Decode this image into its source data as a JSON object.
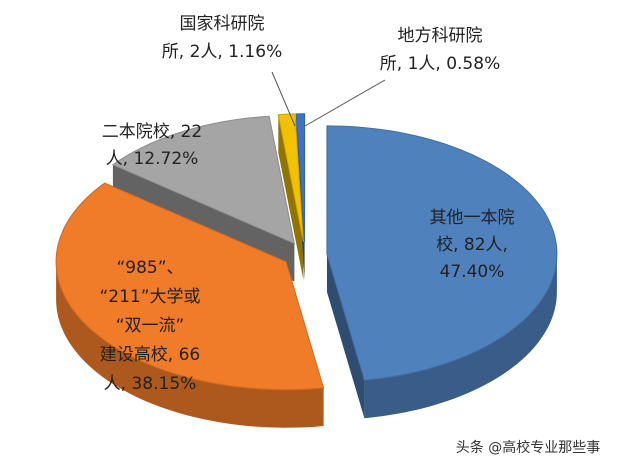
{
  "chart_data": {
    "type": "pie3d",
    "categories": [
      "其他一本院校",
      "“985”、“211”大学或“双一流”建设高校",
      "二本院校",
      "国家科研院所",
      "地方科研院所"
    ],
    "counts": [
      82,
      66,
      22,
      2,
      1
    ],
    "values": [
      47.4,
      38.15,
      12.72,
      1.16,
      0.58
    ],
    "value_labels": [
      [
        "其他一本院",
        "校, 82人,",
        "47.40%"
      ],
      [
        "“985”、",
        "“211”大学或",
        "“双一流”",
        "建设高校, 66",
        "人, 38.15%"
      ],
      [
        "二本院校, 22",
        "人, 12.72%"
      ],
      [
        "国家科研院",
        "所, 2人, 1.16%"
      ],
      [
        "地方科研院",
        "所, 1人, 0.58%"
      ]
    ],
    "colors": [
      "#4f81bd",
      "#f07b28",
      "#a5a5a5",
      "#f2c200",
      "#3d72c4"
    ]
  },
  "watermark": "头条 @高校专业那些事"
}
